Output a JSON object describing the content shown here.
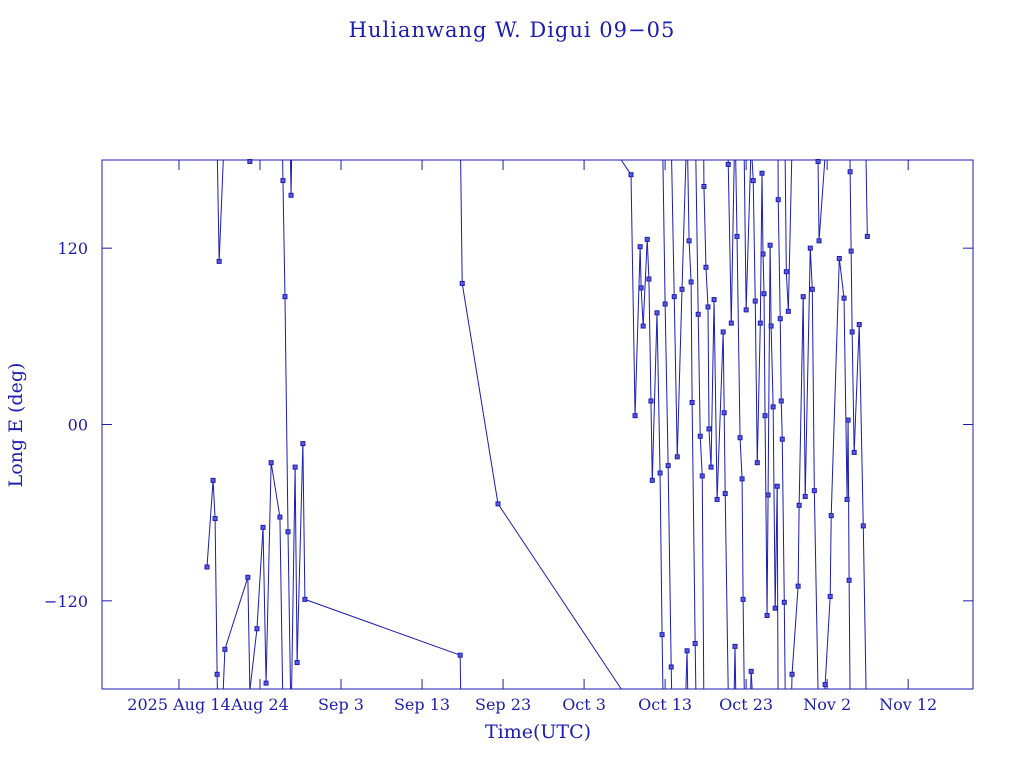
{
  "chart_data": {
    "type": "line",
    "title": "Hulianwang W. Digui 09−05",
    "xlabel": "Time(UTC)",
    "ylabel": "Long E (deg)",
    "color": "#1c1cb0",
    "markers": true,
    "xlim": [
      "2025-08-04T12:00",
      "2025-11-20T00:00"
    ],
    "ylim": [
      -180,
      180
    ],
    "xticks": [
      {
        "value": "2025-08-14T00:00",
        "label": "2025 Aug 14"
      },
      {
        "value": "2025-08-24T00:00",
        "label": "Aug 24"
      },
      {
        "value": "2025-09-03T00:00",
        "label": "Sep  3"
      },
      {
        "value": "2025-09-13T00:00",
        "label": "Sep 13"
      },
      {
        "value": "2025-09-23T00:00",
        "label": "Sep 23"
      },
      {
        "value": "2025-10-03T00:00",
        "label": "Oct  3"
      },
      {
        "value": "2025-10-13T00:00",
        "label": "Oct 13"
      },
      {
        "value": "2025-10-23T00:00",
        "label": "Oct 23"
      },
      {
        "value": "2025-11-02T00:00",
        "label": "Nov  2"
      },
      {
        "value": "2025-11-12T00:00",
        "label": "Nov 12"
      }
    ],
    "yticks": [
      {
        "value": -120,
        "label": "−120"
      },
      {
        "value": 0,
        "label": "00"
      },
      120
    ],
    "x": [
      "2025-08-17T11:00",
      "2025-08-18T05:00",
      "2025-08-18T11:00",
      "2025-08-18T17:00",
      "2025-08-18T23:00",
      "2025-08-19T16:00",
      "2025-08-22T12:00",
      "2025-08-22T18:00",
      "2025-08-23T15:00",
      "2025-08-24T09:00",
      "2025-08-24T18:00",
      "2025-08-25T09:00",
      "2025-08-26T11:00",
      "2025-08-26T20:00",
      "2025-08-27T02:00",
      "2025-08-27T11:00",
      "2025-08-27T20:00",
      "2025-08-28T08:00",
      "2025-08-28T14:00",
      "2025-08-29T07:00",
      "2025-08-29T13:00",
      "2025-09-17T17:00",
      "2025-09-17T23:00",
      "2025-09-22T09:00",
      "2025-10-08T19:00",
      "2025-10-09T07:00",
      "2025-10-09T22:00",
      "2025-10-10T01:00",
      "2025-10-10T07:00",
      "2025-10-10T19:00",
      "2025-10-11T00:00",
      "2025-10-11T06:00",
      "2025-10-11T10:00",
      "2025-10-12T00:00",
      "2025-10-12T09:00",
      "2025-10-12T15:00",
      "2025-10-13T00:00",
      "2025-10-13T09:00",
      "2025-10-13T18:00",
      "2025-10-14T03:00",
      "2025-10-14T12:00",
      "2025-10-15T02:00",
      "2025-10-15T17:00",
      "2025-10-15T23:00",
      "2025-10-16T05:00",
      "2025-10-16T08:00",
      "2025-10-16T17:00",
      "2025-10-17T02:00",
      "2025-10-17T08:00",
      "2025-10-17T14:00",
      "2025-10-17T19:00",
      "2025-10-18T01:00",
      "2025-10-18T07:00",
      "2025-10-18T10:00",
      "2025-10-18T16:00",
      "2025-10-19T01:00",
      "2025-10-19T10:00",
      "2025-10-20T04:00",
      "2025-10-20T07:00",
      "2025-10-20T10:00",
      "2025-10-20T19:00",
      "2025-10-21T04:00",
      "2025-10-21T15:00",
      "2025-10-21T21:00",
      "2025-10-22T06:00",
      "2025-10-22T12:00",
      "2025-10-22T15:00",
      "2025-10-23T00:00",
      "2025-10-23T15:00",
      "2025-10-23T21:00",
      "2025-10-24T03:00",
      "2025-10-24T09:00",
      "2025-10-24T18:00",
      "2025-10-24T23:00",
      "2025-10-25T02:00",
      "2025-10-25T05:00",
      "2025-10-25T08:00",
      "2025-10-25T14:00",
      "2025-10-25T17:00",
      "2025-10-25T23:00",
      "2025-10-26T02:00",
      "2025-10-26T08:00",
      "2025-10-26T14:00",
      "2025-10-26T20:00",
      "2025-10-26T23:00",
      "2025-10-27T05:00",
      "2025-10-27T08:00",
      "2025-10-27T11:00",
      "2025-10-27T17:00",
      "2025-10-27T23:00",
      "2025-10-28T05:00",
      "2025-10-28T16:00",
      "2025-10-29T10:00",
      "2025-10-29T13:00",
      "2025-10-30T01:00",
      "2025-10-30T07:00",
      "2025-10-30T22:00",
      "2025-10-31T04:00",
      "2025-10-31T10:00",
      "2025-10-31T21:00",
      "2025-11-01T00:00",
      "2025-11-01T18:00",
      "2025-11-02T09:00",
      "2025-11-02T12:00",
      "2025-11-03T12:00",
      "2025-11-04T02:00",
      "2025-11-04T11:00",
      "2025-11-04T14:00",
      "2025-11-04T17:00",
      "2025-11-04T20:00",
      "2025-11-04T23:00",
      "2025-11-05T02:00",
      "2025-11-05T08:00",
      "2025-11-05T23:00",
      "2025-11-06T11:00",
      "2025-11-06T23:00"
    ],
    "values": [
      -97,
      -38,
      -64,
      -170,
      111,
      -153,
      -104,
      179,
      -139,
      -70,
      -176,
      -26,
      -63,
      166,
      87,
      -73,
      156,
      -29,
      -162,
      -13,
      -119,
      -157,
      96,
      -54,
      170,
      6,
      121,
      93,
      67,
      126,
      99,
      16,
      -38,
      76,
      -33,
      -143,
      82,
      -28,
      -165,
      87,
      -22,
      92,
      -154,
      125,
      97,
      15,
      -149,
      75,
      -8,
      -35,
      162,
      107,
      80,
      -3,
      -29,
      85,
      -51,
      63,
      8,
      -47,
      177,
      69,
      -151,
      128,
      -9,
      -37,
      -119,
      78,
      -168,
      166,
      84,
      -26,
      69,
      171,
      116,
      89,
      6,
      -130,
      -48,
      122,
      67,
      12,
      -125,
      -42,
      153,
      72,
      16,
      -10,
      -121,
      104,
      77,
      -170,
      -110,
      -55,
      87,
      -49,
      120,
      92,
      -45,
      179,
      125,
      -177,
      -117,
      -62,
      113,
      86,
      -51,
      3,
      -106,
      172,
      118,
      63,
      -19,
      68,
      -69,
      128
    ]
  }
}
